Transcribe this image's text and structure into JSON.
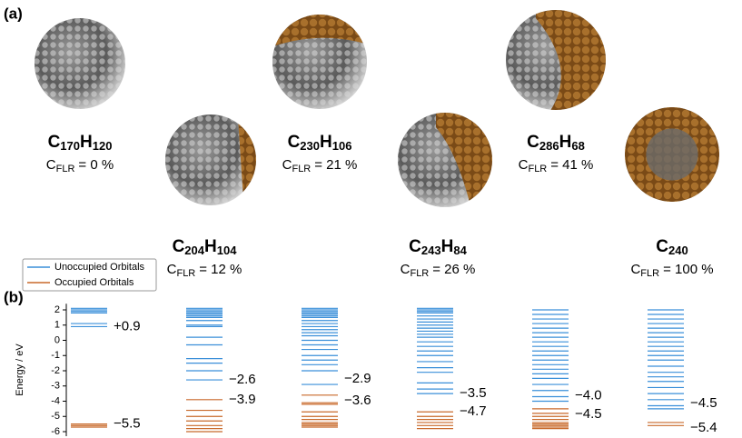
{
  "panel_a": {
    "label": "(a)",
    "molecules": [
      {
        "formula": [
          "C",
          "170",
          "H",
          "120"
        ],
        "cflr": [
          "C",
          "FLR",
          "= 0 %"
        ]
      },
      {
        "formula": [
          "C",
          "204",
          "H",
          "104"
        ],
        "cflr": [
          "C",
          "FLR",
          "= 12 %"
        ]
      },
      {
        "formula": [
          "C",
          "230",
          "H",
          "106"
        ],
        "cflr": [
          "C",
          "FLR",
          "= 21 %"
        ]
      },
      {
        "formula": [
          "C",
          "243",
          "H",
          "84"
        ],
        "cflr": [
          "C",
          "FLR",
          "= 26 %"
        ]
      },
      {
        "formula": [
          "C",
          "286",
          "H",
          "68"
        ],
        "cflr": [
          "C",
          "FLR",
          "= 41 %"
        ]
      },
      {
        "formula": [
          "C",
          "240"
        ],
        "cflr": [
          "C",
          "FLR",
          "= 100 %"
        ]
      }
    ]
  },
  "chart_data": {
    "type": "levels",
    "label": "(b)",
    "ylabel": "Energy / eV",
    "ylim": [
      -6.3,
      2.4
    ],
    "yticks": [
      2,
      1,
      0,
      -1,
      -2,
      -3,
      -4,
      -5,
      -6
    ],
    "categories": [
      null,
      null,
      null,
      null,
      null,
      null
    ],
    "series": [
      {
        "name": "Unoccupied Orbitals",
        "color": "#3a8fd9"
      },
      {
        "name": "Occupied Orbitals",
        "color": "#c8692a"
      }
    ],
    "columns": [
      {
        "unoccupied": [
          0.9,
          1.1,
          1.8,
          1.9,
          2.0,
          2.1
        ],
        "occupied": [
          -5.5,
          -5.6,
          -5.7
        ],
        "lumo": {
          "value": 0.9,
          "label": "+0.9"
        },
        "homo": {
          "value": -5.5,
          "label": "−5.5"
        }
      },
      {
        "unoccupied": [
          -2.6,
          -2.0,
          -1.5,
          -1.2,
          -0.3,
          0.2,
          0.9,
          1.0,
          1.3,
          1.5,
          1.6,
          1.7,
          1.8,
          1.9,
          2.0,
          2.1
        ],
        "occupied": [
          -3.9,
          -4.6,
          -5.0,
          -5.3,
          -5.6,
          -5.8,
          -6.0
        ],
        "lumo": {
          "value": -2.6,
          "label": "−2.6"
        },
        "homo": {
          "value": -3.9,
          "label": "−3.9"
        }
      },
      {
        "unoccupied": [
          -2.9,
          -2.0,
          -1.6,
          -1.3,
          -1.0,
          -0.6,
          -0.3,
          0,
          0.3,
          0.5,
          0.7,
          0.9,
          1.1,
          1.3,
          1.5,
          1.6,
          1.7,
          1.8,
          1.9,
          2.0,
          2.1
        ],
        "occupied": [
          -3.6,
          -4.1,
          -4.2,
          -4.7,
          -5.0,
          -5.2,
          -5.4,
          -5.5,
          -5.6,
          -5.7
        ],
        "lumo": {
          "value": -2.9,
          "label": "−2.9"
        },
        "homo": {
          "value": -3.6,
          "label": "−3.6"
        }
      },
      {
        "unoccupied": [
          -3.5,
          -3.2,
          -2.8,
          -2.1,
          -1.8,
          -1.4,
          -1.0,
          -0.7,
          -0.4,
          -0.1,
          0.2,
          0.4,
          0.6,
          0.8,
          1.0,
          1.2,
          1.4,
          1.6,
          1.8,
          1.9,
          2.0,
          2.1
        ],
        "occupied": [
          -4.7,
          -5.0,
          -5.2,
          -5.4,
          -5.6,
          -5.8
        ],
        "lumo": {
          "value": -3.5,
          "label": "−3.5"
        },
        "homo": {
          "value": -4.7,
          "label": "−4.7"
        }
      },
      {
        "unoccupied": [
          -4.0,
          -3.7,
          -3.3,
          -2.9,
          -2.5,
          -2.2,
          -1.9,
          -1.6,
          -1.3,
          -1.0,
          -0.7,
          -0.4,
          -0.1,
          0.2,
          0.5,
          0.8,
          1.1,
          1.4,
          1.7,
          2.0
        ],
        "occupied": [
          -4.5,
          -4.8,
          -5.0,
          -5.2,
          -5.4,
          -5.5,
          -5.6,
          -5.7,
          -5.8
        ],
        "lumo": {
          "value": -4.0,
          "label": "−4.0"
        },
        "homo": {
          "value": -4.5,
          "label": "−4.5"
        }
      },
      {
        "unoccupied": [
          -4.5,
          -4.3,
          -3.9,
          -3.5,
          -3.1,
          -2.7,
          -2.4,
          -2.1,
          -1.7,
          -1.3,
          -1.0,
          -0.7,
          -0.4,
          -0.1,
          0.2,
          0.5,
          0.8,
          1.1,
          1.4,
          1.7,
          2.0
        ],
        "occupied": [
          -5.4,
          -5.6
        ],
        "lumo": {
          "value": -4.5,
          "label": "−4.5"
        },
        "homo": {
          "value": -5.4,
          "label": "−5.4"
        }
      }
    ]
  }
}
